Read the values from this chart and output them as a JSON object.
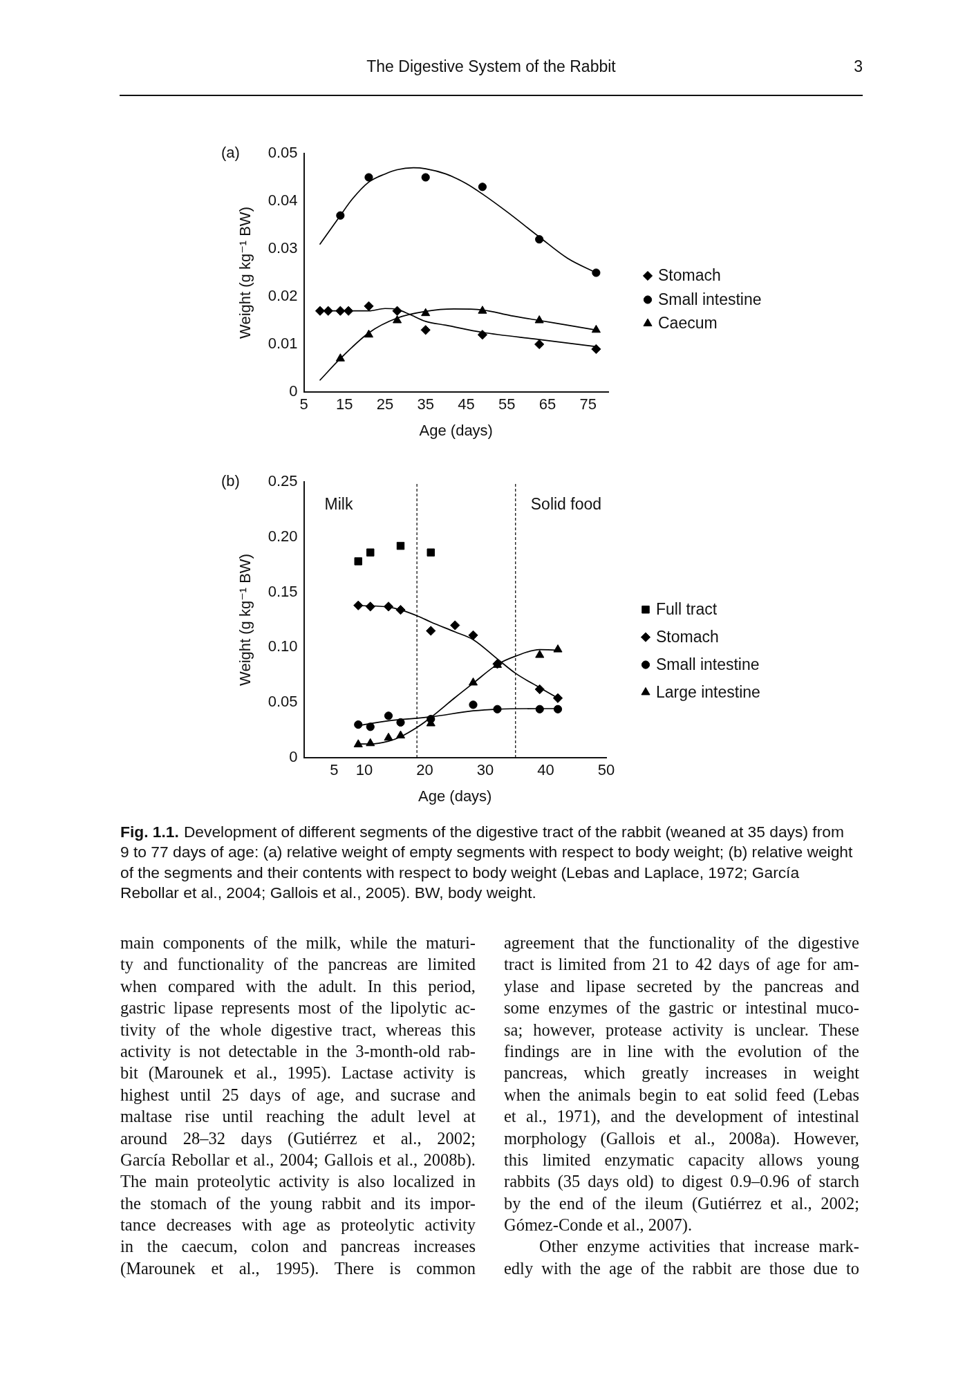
{
  "chart_data": [
    {
      "type": "scatter",
      "title": "(a)",
      "xlabel": "Age (days)",
      "ylabel": "Weight (g kg⁻¹ BW)",
      "xlim": [
        5,
        80
      ],
      "xticks": [
        5,
        15,
        25,
        35,
        45,
        55,
        65,
        75
      ],
      "ylim": [
        0,
        0.05
      ],
      "yticks": [
        0,
        0.01,
        0.02,
        0.03,
        0.04,
        0.05
      ],
      "grid": false,
      "legend": "right",
      "annotations": [
        "The Digestive System of the Rabbit",
        "3"
      ],
      "series": [
        {
          "name": "Stomach",
          "marker": "diamond",
          "color": "#000000",
          "x": [
            9,
            11,
            14,
            16,
            21,
            28,
            35,
            49,
            63,
            77
          ],
          "values": [
            0.017,
            0.017,
            0.017,
            0.017,
            0.018,
            0.017,
            0.013,
            0.012,
            0.01,
            0.009
          ]
        },
        {
          "name": "Small intestine",
          "marker": "circle",
          "color": "#000000",
          "x": [
            14,
            21,
            35,
            49,
            63,
            77
          ],
          "values": [
            0.037,
            0.045,
            0.045,
            0.043,
            0.032,
            0.025
          ]
        },
        {
          "name": "Caecum",
          "marker": "triangle",
          "color": "#000000",
          "x": [
            14,
            21,
            28,
            35,
            49,
            63,
            77
          ],
          "values": [
            0.007,
            0.012,
            0.015,
            0.0165,
            0.017,
            0.015,
            0.013
          ]
        },
        {
          "type": "line",
          "marker": "none",
          "color": "#000000",
          "x": [
            9,
            14,
            21,
            25,
            28,
            31,
            35,
            40,
            49,
            63,
            77
          ],
          "values": [
            0.017,
            0.017,
            0.017,
            0.0175,
            0.0173,
            0.0163,
            0.0148,
            0.014,
            0.0125,
            0.011,
            0.0095
          ]
        },
        {
          "type": "line",
          "marker": "none",
          "color": "#000000",
          "x": [
            9,
            14,
            17,
            21,
            25,
            28,
            32,
            35,
            40,
            45,
            49,
            55,
            63,
            70,
            77
          ],
          "values": [
            0.031,
            0.037,
            0.0405,
            0.044,
            0.0457,
            0.0466,
            0.047,
            0.0468,
            0.0457,
            0.0437,
            0.0415,
            0.0378,
            0.0325,
            0.028,
            0.025
          ]
        },
        {
          "type": "line",
          "marker": "none",
          "color": "#000000",
          "x": [
            9,
            14,
            21,
            28,
            35,
            42,
            49,
            56,
            63,
            70,
            77
          ],
          "values": [
            0.0025,
            0.007,
            0.0124,
            0.0155,
            0.0169,
            0.0174,
            0.0172,
            0.016,
            0.015,
            0.014,
            0.013
          ]
        }
      ]
    },
    {
      "type": "scatter",
      "title": "(b)",
      "xlabel": "Age (days)",
      "ylabel": "Weight (g kg⁻¹ BW)",
      "xlim": [
        0,
        50
      ],
      "xticks": [
        5,
        10,
        20,
        30,
        40,
        50
      ],
      "ylim": [
        0,
        0.25
      ],
      "yticks": [
        0,
        0.05,
        {
          "value": 0.1,
          "label": "0.10"
        },
        0.15,
        {
          "value": 0.2,
          "label": "0.20"
        },
        0.25
      ],
      "grid": false,
      "legend": "right",
      "ref_lines": [
        {
          "axis": "x",
          "value": 18.7,
          "line_style": "dashed",
          "color": "#000000"
        },
        {
          "axis": "x",
          "value": 35,
          "line_style": "dashed",
          "color": "#000000"
        }
      ],
      "annotations": [
        "Milk",
        "Solid food",
        "Fig. 1.1.",
        "Development of different segments of the digestive tract of the rabbit (weaned at 35 days) from\n9 to 77 days of age: (a) relative weight of empty segments with respect to body weight; (b) relative weight\nof the segments and their contents with respect to body weight (Lebas and Laplace, 1972; García\nRebollar et al., 2004; Gallois et al., 2005). BW, body weight.",
        "main components of the milk, while the maturi-\nty and functionality of the pancreas are limited\nwhen compared with the adult. In this period,\ngastric lipase represents most of the lipolytic ac-\ntivity of the whole digestive tract, whereas this\nactivity is not detectable in the 3-month-old rab-\nbit (Marounek et al., 1995). Lactase activity is\nhighest until 25 days of age, and sucrase and\nmaltase rise until reaching the adult level at\naround 28–32 days (Gutiérrez et al., 2002;\nGarcía Rebollar et al., 2004; Gallois et al., 2008b).\nThe main proteolytic activity is also localized in\nthe stomach of the young rabbit and its impor-\ntance decreases with age as proteolytic activity\nin the caecum, colon and pancreas increases\n(Marounek et al., 1995). There is common",
        "agreement that the functionality of the digestive\ntract is limited from 21 to 42 days of age for am-\nylase and lipase secreted by the pancreas and\nsome enzymes of the gastric or intestinal muco-\nsa; however, protease activity is unclear. These\nfindings are in line with the evolution of the\npancreas, which greatly increases in weight\nwhen the animals begin to eat solid feed (Lebas\net al., 1971), and the development of intestinal\nmorphology (Gallois et al., 2008a). However,\nthis limited enzymatic capacity allows young\nrabbits (35 days old) to digest 0.9–0.96 of starch\nby the end of the ileum (Gutiérrez et al., 2002;\nGómez-Conde et al., 2007).",
        "Other enzyme activities that increase mark-\nedly with the age of the rabbit are those due to"
      ],
      "series": [
        {
          "name": "Full tract",
          "marker": "square",
          "color": "#000000",
          "x": [
            9,
            11,
            16,
            21
          ],
          "values": [
            0.178,
            0.186,
            0.192,
            0.186
          ]
        },
        {
          "name": "Stomach",
          "marker": "diamond",
          "color": "#000000",
          "x": [
            9,
            11,
            14,
            16,
            21,
            25,
            28,
            32,
            39,
            42
          ],
          "values": [
            0.138,
            0.137,
            0.137,
            0.134,
            0.115,
            0.12,
            0.111,
            0.085,
            0.062,
            0.054
          ]
        },
        {
          "name": "Small intestine",
          "marker": "circle",
          "color": "#000000",
          "x": [
            9,
            11,
            14,
            16,
            21,
            28,
            32,
            39,
            42
          ],
          "values": [
            0.03,
            0.028,
            0.038,
            0.032,
            0.035,
            0.048,
            0.044,
            0.044,
            0.044
          ]
        },
        {
          "name": "Large intestine",
          "marker": "triangle",
          "color": "#000000",
          "x": [
            9,
            11,
            14,
            16,
            21,
            28,
            32,
            39,
            42
          ],
          "values": [
            0.012,
            0.013,
            0.018,
            0.02,
            0.031,
            0.068,
            0.084,
            0.093,
            0.098
          ]
        },
        {
          "type": "line",
          "marker": "none",
          "color": "#000000",
          "x": [
            9,
            14,
            16,
            19,
            21,
            25,
            28,
            32,
            35,
            39,
            42
          ],
          "values": [
            0.138,
            0.1365,
            0.134,
            0.128,
            0.123,
            0.114,
            0.107,
            0.0895,
            0.0765,
            0.0635,
            0.054
          ]
        },
        {
          "type": "line",
          "marker": "none",
          "color": "#000000",
          "x": [
            9,
            14,
            21,
            28,
            32,
            39,
            42
          ],
          "values": [
            0.029,
            0.0335,
            0.037,
            0.0425,
            0.044,
            0.0445,
            0.0445
          ]
        },
        {
          "type": "line",
          "marker": "none",
          "color": "#000000",
          "x": [
            9,
            11,
            14,
            16,
            19,
            21,
            25,
            28,
            32,
            35,
            39,
            42
          ],
          "values": [
            0.0125,
            0.0125,
            0.015,
            0.019,
            0.0285,
            0.0365,
            0.0545,
            0.0675,
            0.0845,
            0.092,
            0.098,
            0.0975
          ]
        }
      ]
    }
  ]
}
